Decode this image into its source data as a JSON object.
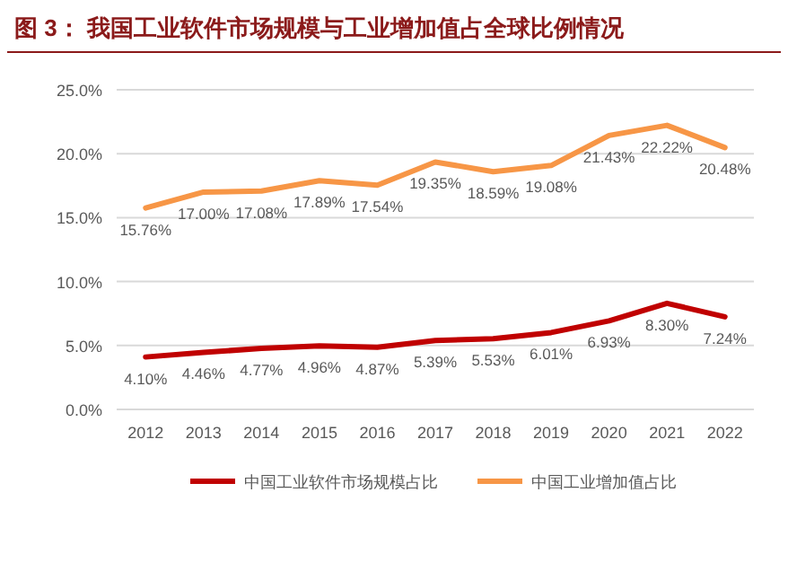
{
  "chart_data": {
    "type": "line",
    "title": "图 3：  我国工业软件市场规模与工业增加值占全球比例情况",
    "categories": [
      "2012",
      "2013",
      "2014",
      "2015",
      "2016",
      "2017",
      "2018",
      "2019",
      "2020",
      "2021",
      "2022"
    ],
    "series": [
      {
        "name": "中国工业软件市场规模占比",
        "color": "#c00000",
        "values": [
          4.1,
          4.46,
          4.77,
          4.96,
          4.87,
          5.39,
          5.53,
          6.01,
          6.93,
          8.3,
          7.24
        ],
        "value_labels": [
          "4.10%",
          "4.46%",
          "4.77%",
          "4.96%",
          "4.87%",
          "5.39%",
          "5.53%",
          "6.01%",
          "6.93%",
          "8.30%",
          "7.24%"
        ]
      },
      {
        "name": "中国工业增加值占比",
        "color": "#f79646",
        "values": [
          15.76,
          17.0,
          17.08,
          17.89,
          17.54,
          19.35,
          18.59,
          19.08,
          21.43,
          22.22,
          20.48
        ],
        "value_labels": [
          "15.76%",
          "17.00%",
          "17.08%",
          "17.89%",
          "17.54%",
          "19.35%",
          "18.59%",
          "19.08%",
          "21.43%",
          "22.22%",
          "20.48%"
        ]
      }
    ],
    "ylim": [
      0,
      25
    ],
    "yticks": [
      {
        "value": 0,
        "label": "0.0%"
      },
      {
        "value": 5,
        "label": "5.0%"
      },
      {
        "value": 10,
        "label": "10.0%"
      },
      {
        "value": 15,
        "label": "15.0%"
      },
      {
        "value": 20,
        "label": "20.0%"
      },
      {
        "value": 25,
        "label": "25.0%"
      }
    ],
    "grid": "y",
    "legend": "bottom",
    "marker": "none",
    "line_style": "solid"
  }
}
